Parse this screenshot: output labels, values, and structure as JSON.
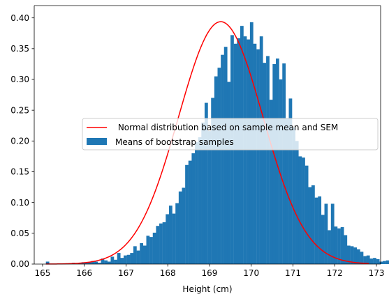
{
  "chart_data": {
    "type": "histogram",
    "title": "",
    "xlabel": "Height (cm)",
    "ylabel": "",
    "xlim": [
      164.8,
      173.1
    ],
    "ylim": [
      0,
      0.42
    ],
    "x_ticks": [
      165,
      166,
      167,
      168,
      169,
      170,
      171,
      172,
      173
    ],
    "x_tick_labels": [
      "165",
      "166",
      "167",
      "168",
      "169",
      "170",
      "171",
      "172",
      "173"
    ],
    "y_ticks": [
      0.0,
      0.05,
      0.1,
      0.15,
      0.2,
      0.25,
      0.3,
      0.35,
      0.4
    ],
    "y_tick_labels": [
      "0.00",
      "0.05",
      "0.10",
      "0.15",
      "0.20",
      "0.25",
      "0.30",
      "0.35",
      "0.40"
    ],
    "grid": false,
    "legend_position": "center",
    "histogram": {
      "name": "Means of bootstrap samples",
      "color": "#1f77b4",
      "bin_start": 165.08,
      "bin_width": 0.0776,
      "heights": [
        0.004,
        0,
        0,
        0,
        0,
        0,
        0,
        0,
        0.002,
        0,
        0.001,
        0.003,
        0.002,
        0.003,
        0.005,
        0.004,
        0.002,
        0.009,
        0.006,
        0.004,
        0.012,
        0.007,
        0.018,
        0.01,
        0.014,
        0.015,
        0.018,
        0.029,
        0.022,
        0.034,
        0.03,
        0.046,
        0.044,
        0.051,
        0.062,
        0.066,
        0.068,
        0.081,
        0.095,
        0.082,
        0.099,
        0.118,
        0.124,
        0.161,
        0.168,
        0.18,
        0.198,
        0.206,
        0.23,
        0.262,
        0.216,
        0.27,
        0.305,
        0.319,
        0.34,
        0.353,
        0.296,
        0.372,
        0.358,
        0.367,
        0.387,
        0.37,
        0.365,
        0.393,
        0.358,
        0.349,
        0.37,
        0.327,
        0.338,
        0.267,
        0.325,
        0.334,
        0.3,
        0.326,
        0.237,
        0.269,
        0.222,
        0.2,
        0.175,
        0.173,
        0.16,
        0.125,
        0.128,
        0.108,
        0.11,
        0.08,
        0.098,
        0.055,
        0.098,
        0.061,
        0.058,
        0.06,
        0.047,
        0.03,
        0.029,
        0.027,
        0.024,
        0.02,
        0.013,
        0.014,
        0.009,
        0.01,
        0.008,
        0.004,
        0.005,
        0.006,
        0.002,
        0.002,
        0.006,
        0,
        0.001,
        0.002
      ]
    },
    "curve": {
      "name": " Normal distribution based on sample mean and SEM",
      "color": "#ff0000",
      "mean": 169.27,
      "sd": 1.013,
      "x_range": [
        165.08,
        172.82
      ]
    }
  }
}
